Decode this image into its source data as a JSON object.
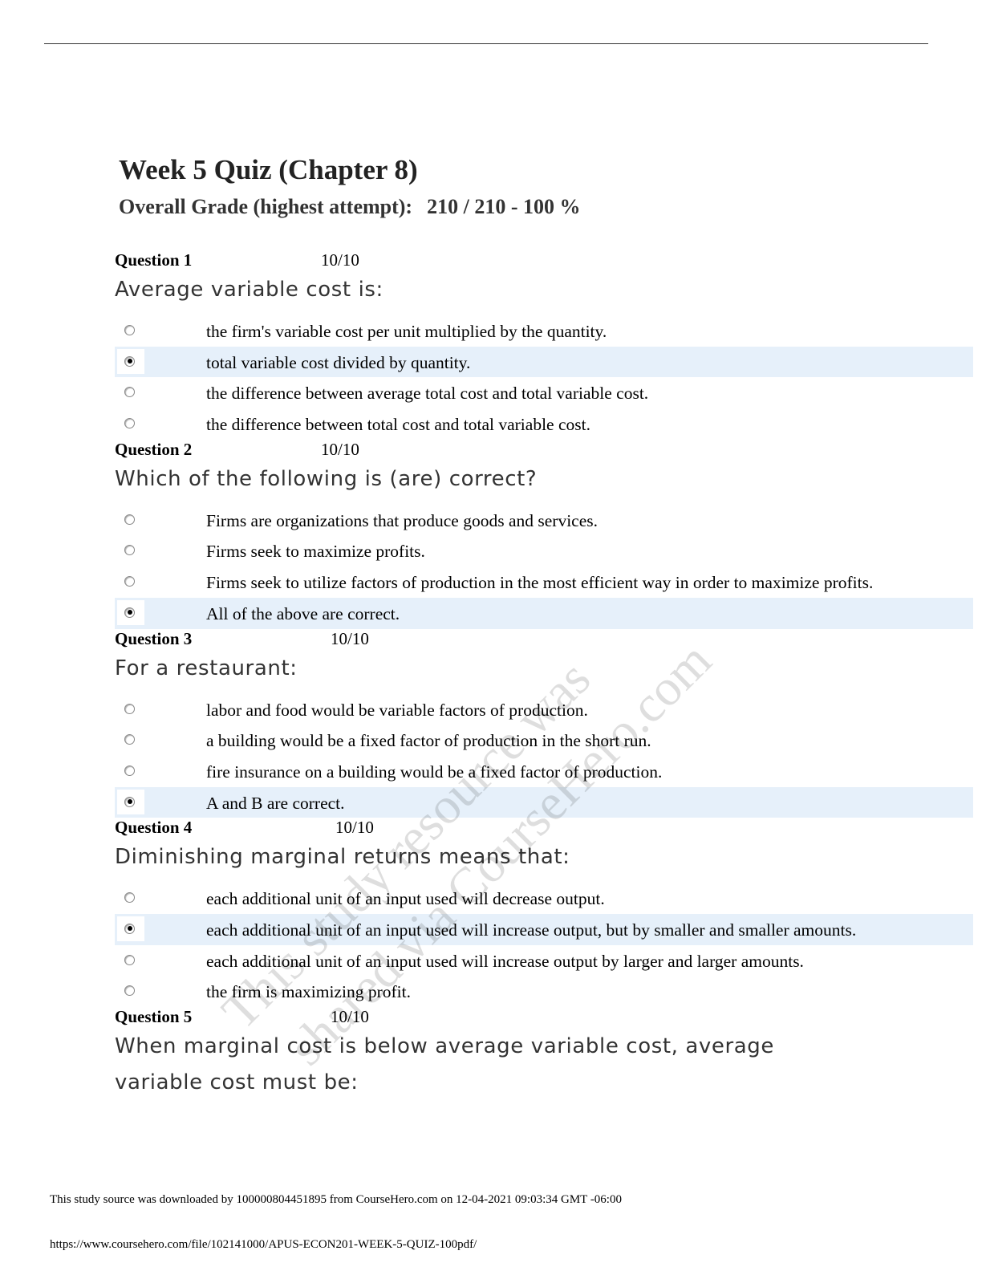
{
  "title": "Week 5 Quiz (Chapter 8)",
  "grade_label": "Overall Grade (highest attempt):",
  "grade_value": "210 / 210 - 100 %",
  "questions": [
    {
      "label": "Question 1",
      "score": "10/10",
      "prompt": "Average variable cost is:",
      "options": [
        "the firm's variable cost per unit multiplied by the quantity.",
        "total variable cost divided by quantity.",
        "the difference between average total cost and total variable cost.",
        "the difference between total cost and total variable cost."
      ],
      "selected": 1
    },
    {
      "label": "Question 2",
      "score": "10/10",
      "prompt": "Which of the following is (are) correct?",
      "options": [
        "Firms are organizations that produce goods and services.",
        "Firms seek to maximize profits.",
        "Firms seek to utilize factors of production in the most efficient way in order to maximize profits.",
        "All of the above are correct."
      ],
      "selected": 3
    },
    {
      "label": "Question 3",
      "score": "10/10",
      "prompt": "For a restaurant:",
      "options": [
        "labor and food would be variable factors of production.",
        "a building would be a fixed factor of production in the short run.",
        "fire insurance on a building would be a fixed factor of production.",
        "A and B are correct."
      ],
      "selected": 3
    },
    {
      "label": "Question 4",
      "score": "10/10",
      "prompt": "Diminishing marginal returns means that:",
      "options": [
        "each additional unit of an input used will decrease output.",
        "each additional unit of an input used will increase output, but by smaller and smaller amounts.",
        "each additional unit of an input used will increase output by larger and larger amounts.",
        "the firm is maximizing profit."
      ],
      "selected": 1
    },
    {
      "label": "Question 5",
      "score": "10/10",
      "prompt": "When marginal cost is below average variable cost, average variable cost must be:",
      "options": [],
      "selected": null
    }
  ],
  "watermark": [
    "This study resource was",
    "shared via CourseHero.com"
  ],
  "footer": {
    "download_note": "This study source was downloaded by 100000804451895 from CourseHero.com on 12-04-2021 09:03:34 GMT -06:00",
    "url": "https://www.coursehero.com/file/102141000/APUS-ECON201-WEEK-5-QUIZ-100pdf/"
  }
}
